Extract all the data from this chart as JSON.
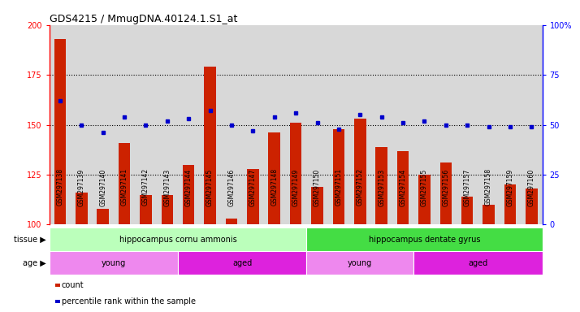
{
  "title": "GDS4215 / MmugDNA.40124.1.S1_at",
  "samples": [
    "GSM297138",
    "GSM297139",
    "GSM297140",
    "GSM297141",
    "GSM297142",
    "GSM297143",
    "GSM297144",
    "GSM297145",
    "GSM297146",
    "GSM297147",
    "GSM297148",
    "GSM297149",
    "GSM297150",
    "GSM297151",
    "GSM297152",
    "GSM297153",
    "GSM297154",
    "GSM297155",
    "GSM297156",
    "GSM297157",
    "GSM297158",
    "GSM297159",
    "GSM297160"
  ],
  "counts": [
    193,
    116,
    108,
    141,
    115,
    115,
    130,
    179,
    103,
    128,
    146,
    151,
    119,
    148,
    153,
    139,
    137,
    125,
    131,
    114,
    110,
    120,
    118
  ],
  "percentiles": [
    62,
    50,
    46,
    54,
    50,
    52,
    53,
    57,
    50,
    47,
    54,
    56,
    51,
    48,
    55,
    54,
    51,
    52,
    50,
    50,
    49,
    49,
    49
  ],
  "ylim_left": [
    100,
    200
  ],
  "ylim_right": [
    0,
    100
  ],
  "yticks_left": [
    100,
    125,
    150,
    175,
    200
  ],
  "yticks_right": [
    0,
    25,
    50,
    75,
    100
  ],
  "bar_color": "#cc2200",
  "dot_color": "#0000cc",
  "bg_color": "#d8d8d8",
  "tissue_groups": [
    {
      "label": "hippocampus cornu ammonis",
      "start": 0,
      "end": 12,
      "color": "#bbffbb"
    },
    {
      "label": "hippocampus dentate gyrus",
      "start": 12,
      "end": 23,
      "color": "#44dd44"
    }
  ],
  "age_groups": [
    {
      "label": "young",
      "start": 0,
      "end": 6,
      "color": "#ee88ee"
    },
    {
      "label": "aged",
      "start": 6,
      "end": 12,
      "color": "#dd22dd"
    },
    {
      "label": "young",
      "start": 12,
      "end": 17,
      "color": "#ee88ee"
    },
    {
      "label": "aged",
      "start": 17,
      "end": 23,
      "color": "#dd22dd"
    }
  ],
  "legend_count_color": "#cc2200",
  "legend_dot_color": "#0000cc"
}
